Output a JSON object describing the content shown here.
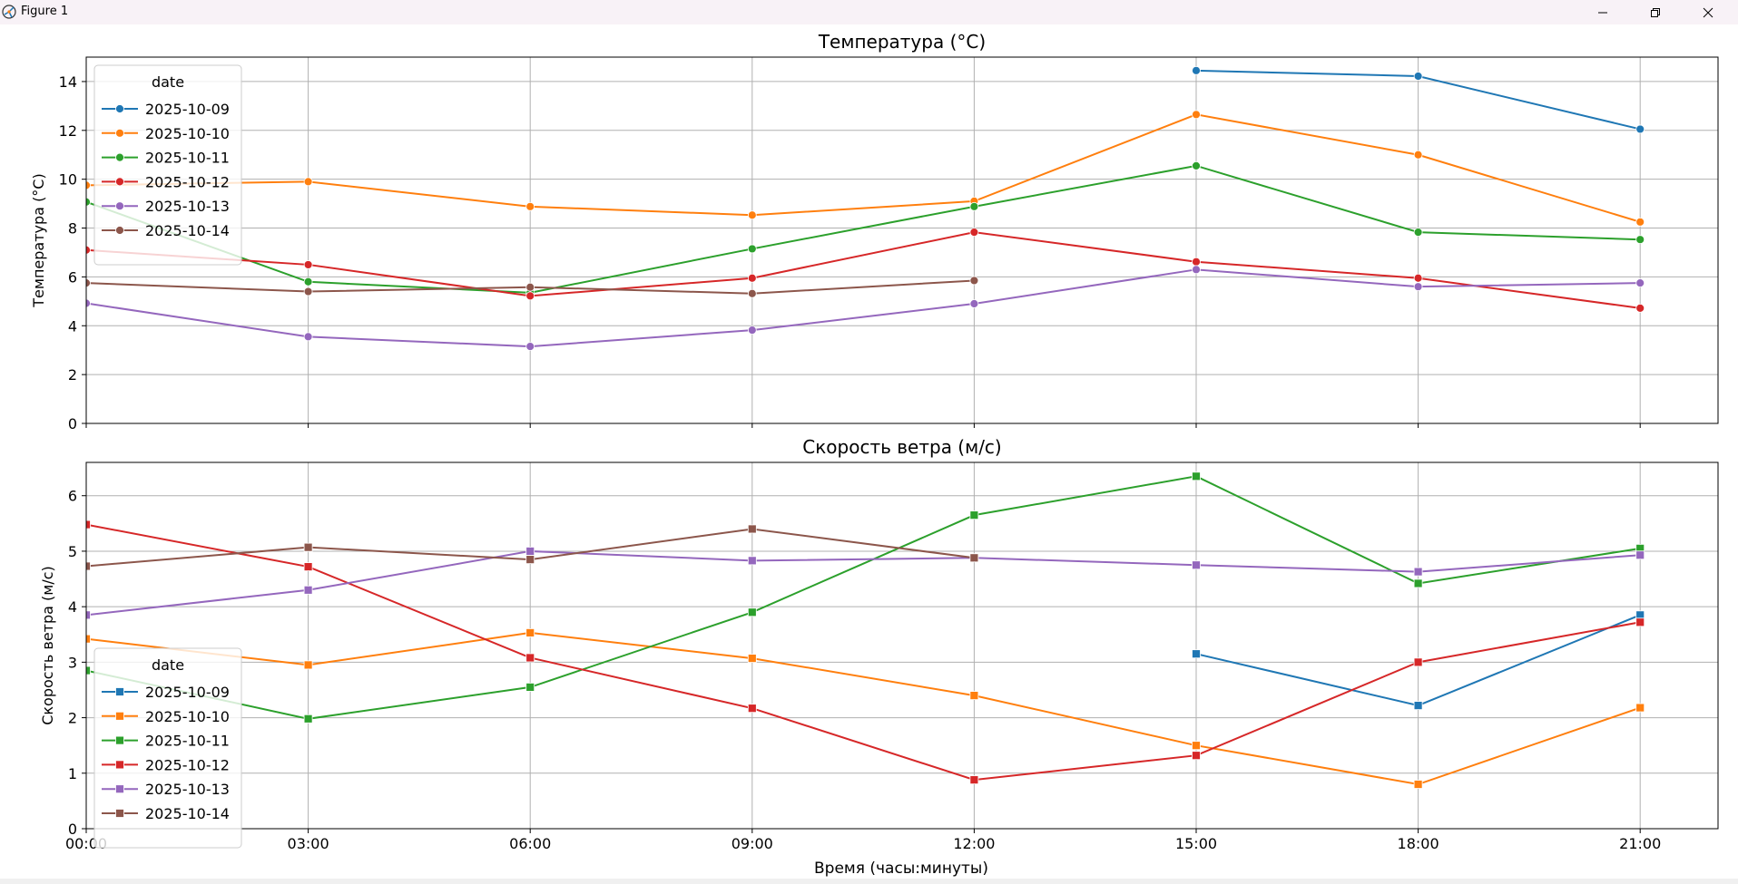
{
  "window": {
    "title": "Figure 1",
    "icons": [
      "app-icon",
      "minimize-icon",
      "restore-icon",
      "close-icon"
    ]
  },
  "x_axis_label": "Время (часы:минуты)",
  "legend_title": "date",
  "colors": {
    "2025-10-09": "#1f77b4",
    "2025-10-10": "#ff7f0e",
    "2025-10-11": "#2ca02c",
    "2025-10-12": "#d62728",
    "2025-10-13": "#9467bd",
    "2025-10-14": "#8c564b",
    "grid": "#b0b0b0"
  },
  "chart_data": [
    {
      "type": "line",
      "title": "Температура (°C)",
      "xlabel": "",
      "ylabel": "Температура (°C)",
      "categories": [
        "00:00",
        "03:00",
        "06:00",
        "09:00",
        "12:00",
        "15:00",
        "18:00",
        "21:00"
      ],
      "ylim": [
        0,
        15
      ],
      "yticks": [
        0,
        2,
        4,
        6,
        8,
        10,
        12,
        14
      ],
      "grid": true,
      "marker": "circle",
      "legend": {
        "title": "date",
        "position": "upper-left"
      },
      "series": [
        {
          "name": "2025-10-09",
          "values": [
            null,
            null,
            null,
            null,
            null,
            14.45,
            14.22,
            12.05
          ]
        },
        {
          "name": "2025-10-10",
          "values": [
            9.75,
            9.9,
            8.88,
            8.53,
            9.1,
            12.65,
            11.0,
            8.25
          ]
        },
        {
          "name": "2025-10-11",
          "values": [
            9.07,
            5.8,
            5.35,
            7.15,
            8.88,
            10.55,
            7.83,
            7.53
          ]
        },
        {
          "name": "2025-10-12",
          "values": [
            7.1,
            6.5,
            5.22,
            5.95,
            7.83,
            6.62,
            5.95,
            4.72
          ]
        },
        {
          "name": "2025-10-13",
          "values": [
            4.92,
            3.55,
            3.15,
            3.82,
            4.9,
            6.3,
            5.6,
            5.75
          ]
        },
        {
          "name": "2025-10-14",
          "values": [
            5.75,
            5.4,
            5.58,
            5.32,
            5.85,
            null,
            null,
            null
          ]
        }
      ]
    },
    {
      "type": "line",
      "title": "Скорость ветра (м/с)",
      "xlabel": "Время (часы:минуты)",
      "ylabel": "Скорость ветра (м/с)",
      "categories": [
        "00:00",
        "03:00",
        "06:00",
        "09:00",
        "12:00",
        "15:00",
        "18:00",
        "21:00"
      ],
      "ylim": [
        0,
        6.6
      ],
      "yticks": [
        0,
        1,
        2,
        3,
        4,
        5,
        6
      ],
      "grid": true,
      "marker": "square",
      "legend": {
        "title": "date",
        "position": "lower-left"
      },
      "series": [
        {
          "name": "2025-10-09",
          "values": [
            null,
            null,
            null,
            null,
            null,
            3.15,
            2.22,
            3.85
          ]
        },
        {
          "name": "2025-10-10",
          "values": [
            3.42,
            2.95,
            3.53,
            3.07,
            2.4,
            1.5,
            0.8,
            2.18
          ]
        },
        {
          "name": "2025-10-11",
          "values": [
            2.85,
            1.98,
            2.55,
            3.9,
            5.65,
            6.35,
            4.42,
            5.05
          ]
        },
        {
          "name": "2025-10-12",
          "values": [
            5.48,
            4.72,
            3.08,
            2.17,
            0.88,
            1.32,
            3.0,
            3.72
          ]
        },
        {
          "name": "2025-10-13",
          "values": [
            3.85,
            4.3,
            5.0,
            4.83,
            4.88,
            4.75,
            4.63,
            4.93
          ]
        },
        {
          "name": "2025-10-14",
          "values": [
            4.73,
            5.07,
            4.85,
            5.4,
            4.88,
            null,
            null,
            null
          ]
        }
      ]
    }
  ]
}
